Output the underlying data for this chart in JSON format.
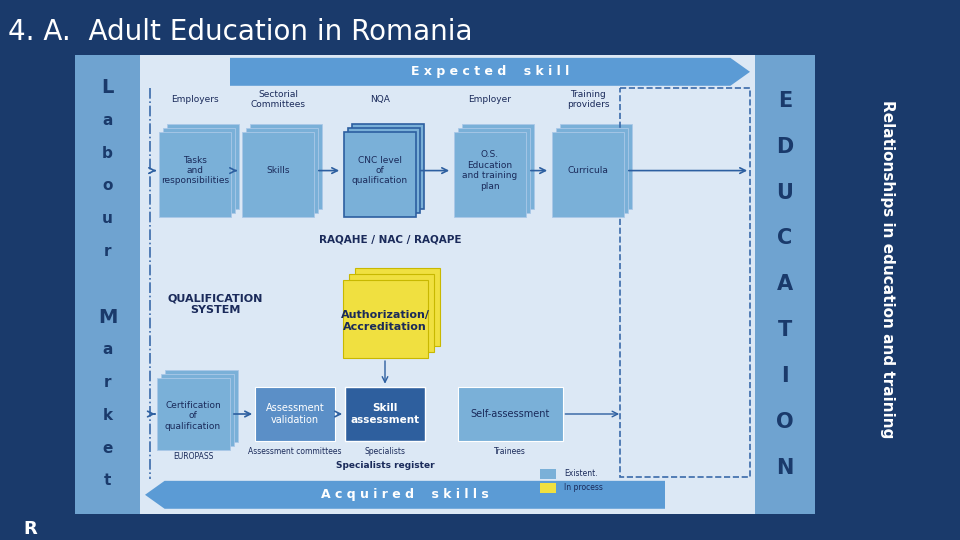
{
  "title": "4. A.  Adult Education in Romania",
  "bg_color": "#1a3a6b",
  "main_area_bg": "#dce8f5",
  "left_bar_color": "#6fa3d0",
  "right_bar_color": "#6fa3d0",
  "right_sidebar_color": "#1a3a6b",
  "left_bar_text_lines": [
    "L",
    "a",
    "b",
    "o",
    "u",
    "r",
    " ",
    "M",
    "a",
    "r",
    "k",
    "e",
    "t"
  ],
  "right_bar_text_lines": [
    "E",
    "D",
    "U",
    "C",
    "A",
    "T",
    "I",
    "O",
    "N"
  ],
  "right_sidebar_text": "Relationships in education and training",
  "bottom_left_text": "R",
  "arrow_top_text": "E x p e c t e d    s k i l l",
  "arrow_bottom_text": "A c q u i r e d    s k i l l s",
  "arrow_color": "#5b9bd5",
  "box_color_blue_light": "#7ab0d8",
  "box_color_blue_mid": "#5b8fc7",
  "box_color_blue_dark": "#2e5f9e",
  "box_color_yellow": "#f0e040",
  "top_labels": [
    "Employers",
    "Sectorial\nCommittees",
    "NQA",
    "Employer",
    "Training\nproviders"
  ],
  "top_boxes": [
    "Tasks\nand\nresponsibilities",
    "Skills",
    "CNC level\nof\nqualification",
    "O.S.\nEducation\nand training\nplan",
    "Curricula"
  ],
  "middle_label": "RAQAHE / NAC / RAQAPE",
  "middle_left_label": "QUALIFICATION\nSYSTEM",
  "middle_center_box": "Authorization/\nAccreditation",
  "bottom_boxes": [
    "Assessment\nvalidation",
    "Skill\nassessment",
    "Self-assessment"
  ],
  "cert_box": "Certification\nof\nqualification",
  "bottom_sublabels": [
    "Assessment committees",
    "Specialists",
    "Trainees"
  ],
  "europass_label": "EUROPASS",
  "specialists_register_label": "Specialists register",
  "legend_existing": "Existent.",
  "legend_inprocess": "In process"
}
